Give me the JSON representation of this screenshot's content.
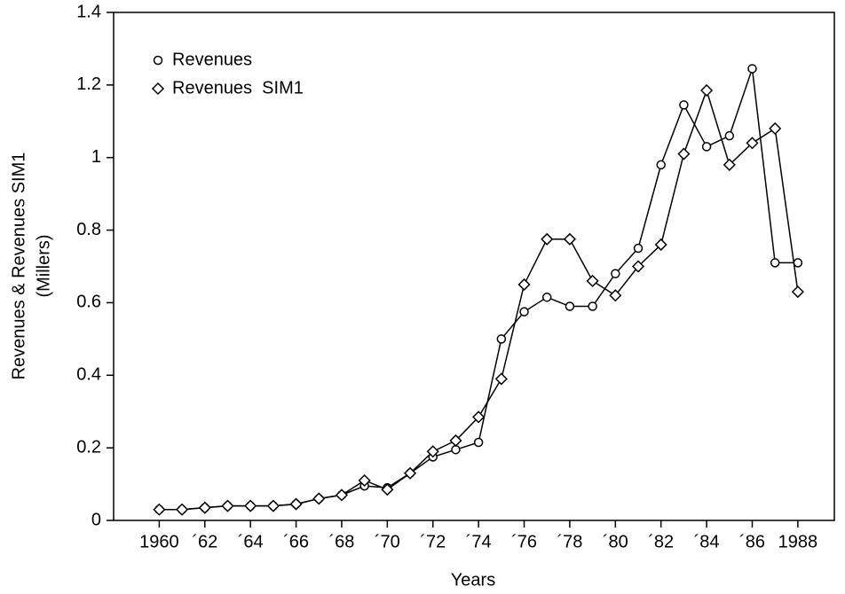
{
  "chart_data": {
    "type": "line",
    "xlabel": "Years",
    "ylabel": [
      "Revenues & Revenues SIM1",
      "(Millers)"
    ],
    "x": [
      1960,
      1961,
      1962,
      1963,
      1964,
      1965,
      1966,
      1967,
      1968,
      1969,
      1970,
      1971,
      1972,
      1973,
      1974,
      1975,
      1976,
      1977,
      1978,
      1979,
      1980,
      1981,
      1982,
      1983,
      1984,
      1985,
      1986,
      1987,
      1988
    ],
    "series": [
      {
        "name": "Revenues",
        "color": "#000000",
        "marker": "circle",
        "values": [
          0.03,
          0.03,
          0.035,
          0.04,
          0.04,
          0.04,
          0.045,
          0.06,
          0.07,
          0.095,
          0.09,
          0.13,
          0.175,
          0.195,
          0.215,
          0.5,
          0.575,
          0.615,
          0.59,
          0.59,
          0.68,
          0.75,
          0.98,
          1.145,
          1.03,
          1.06,
          1.245,
          0.71,
          0.71
        ]
      },
      {
        "name": "Revenues  SIM1",
        "color": "#000000",
        "marker": "diamond",
        "values": [
          0.03,
          0.03,
          0.035,
          0.04,
          0.04,
          0.04,
          0.045,
          0.06,
          0.07,
          0.11,
          0.085,
          0.13,
          0.19,
          0.22,
          0.285,
          0.39,
          0.65,
          0.775,
          0.775,
          0.66,
          0.62,
          0.7,
          0.76,
          1.01,
          1.185,
          0.98,
          1.04,
          1.08,
          0.63
        ]
      }
    ],
    "xlim": [
      1958,
      1989.6
    ],
    "xticks": [
      1960,
      {
        "value": 1962,
        "label": "´62"
      },
      {
        "value": 1964,
        "label": "´64"
      },
      {
        "value": 1966,
        "label": "´66"
      },
      {
        "value": 1968,
        "label": "´68"
      },
      {
        "value": 1970,
        "label": "´70"
      },
      {
        "value": 1972,
        "label": "´72"
      },
      {
        "value": 1974,
        "label": "´74"
      },
      {
        "value": 1976,
        "label": "´76"
      },
      {
        "value": 1978,
        "label": "´78"
      },
      {
        "value": 1980,
        "label": "´80"
      },
      {
        "value": 1982,
        "label": "´82"
      },
      {
        "value": 1984,
        "label": "´84"
      },
      {
        "value": 1986,
        "label": "´86"
      },
      1988
    ],
    "ylim": [
      0,
      1.4
    ],
    "yticks": [
      0,
      0.2,
      0.4,
      0.6,
      0.8,
      1,
      1.2,
      1.4
    ],
    "legend": "upper left"
  }
}
